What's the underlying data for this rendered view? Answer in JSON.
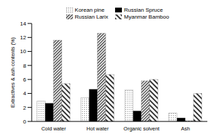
{
  "chart_data": {
    "type": "bar",
    "y_label": "Extractives & ash contents (%)",
    "categories": [
      "Cold water",
      "Hot water",
      "Organic solvent",
      "Ash"
    ],
    "series": [
      {
        "name": "Korean pine",
        "color": "#9a9a9a",
        "values": [
          2.9,
          3.4,
          4.5,
          1.2
        ]
      },
      {
        "name": "Russian Spruce",
        "color": "#000000",
        "values": [
          2.6,
          4.6,
          1.5,
          0.5
        ]
      },
      {
        "name": "Russian Larix",
        "color": "#333333",
        "values": [
          11.6,
          12.6,
          5.8,
          0.1
        ]
      },
      {
        "name": "Myanmar Bamboo",
        "color": "#333333",
        "values": [
          5.4,
          6.7,
          6.0,
          4.0
        ]
      }
    ],
    "ylim": [
      0,
      14
    ],
    "yticks": [
      0,
      2,
      4,
      6,
      8,
      10,
      12,
      14
    ],
    "grid": false,
    "legend": "top"
  }
}
